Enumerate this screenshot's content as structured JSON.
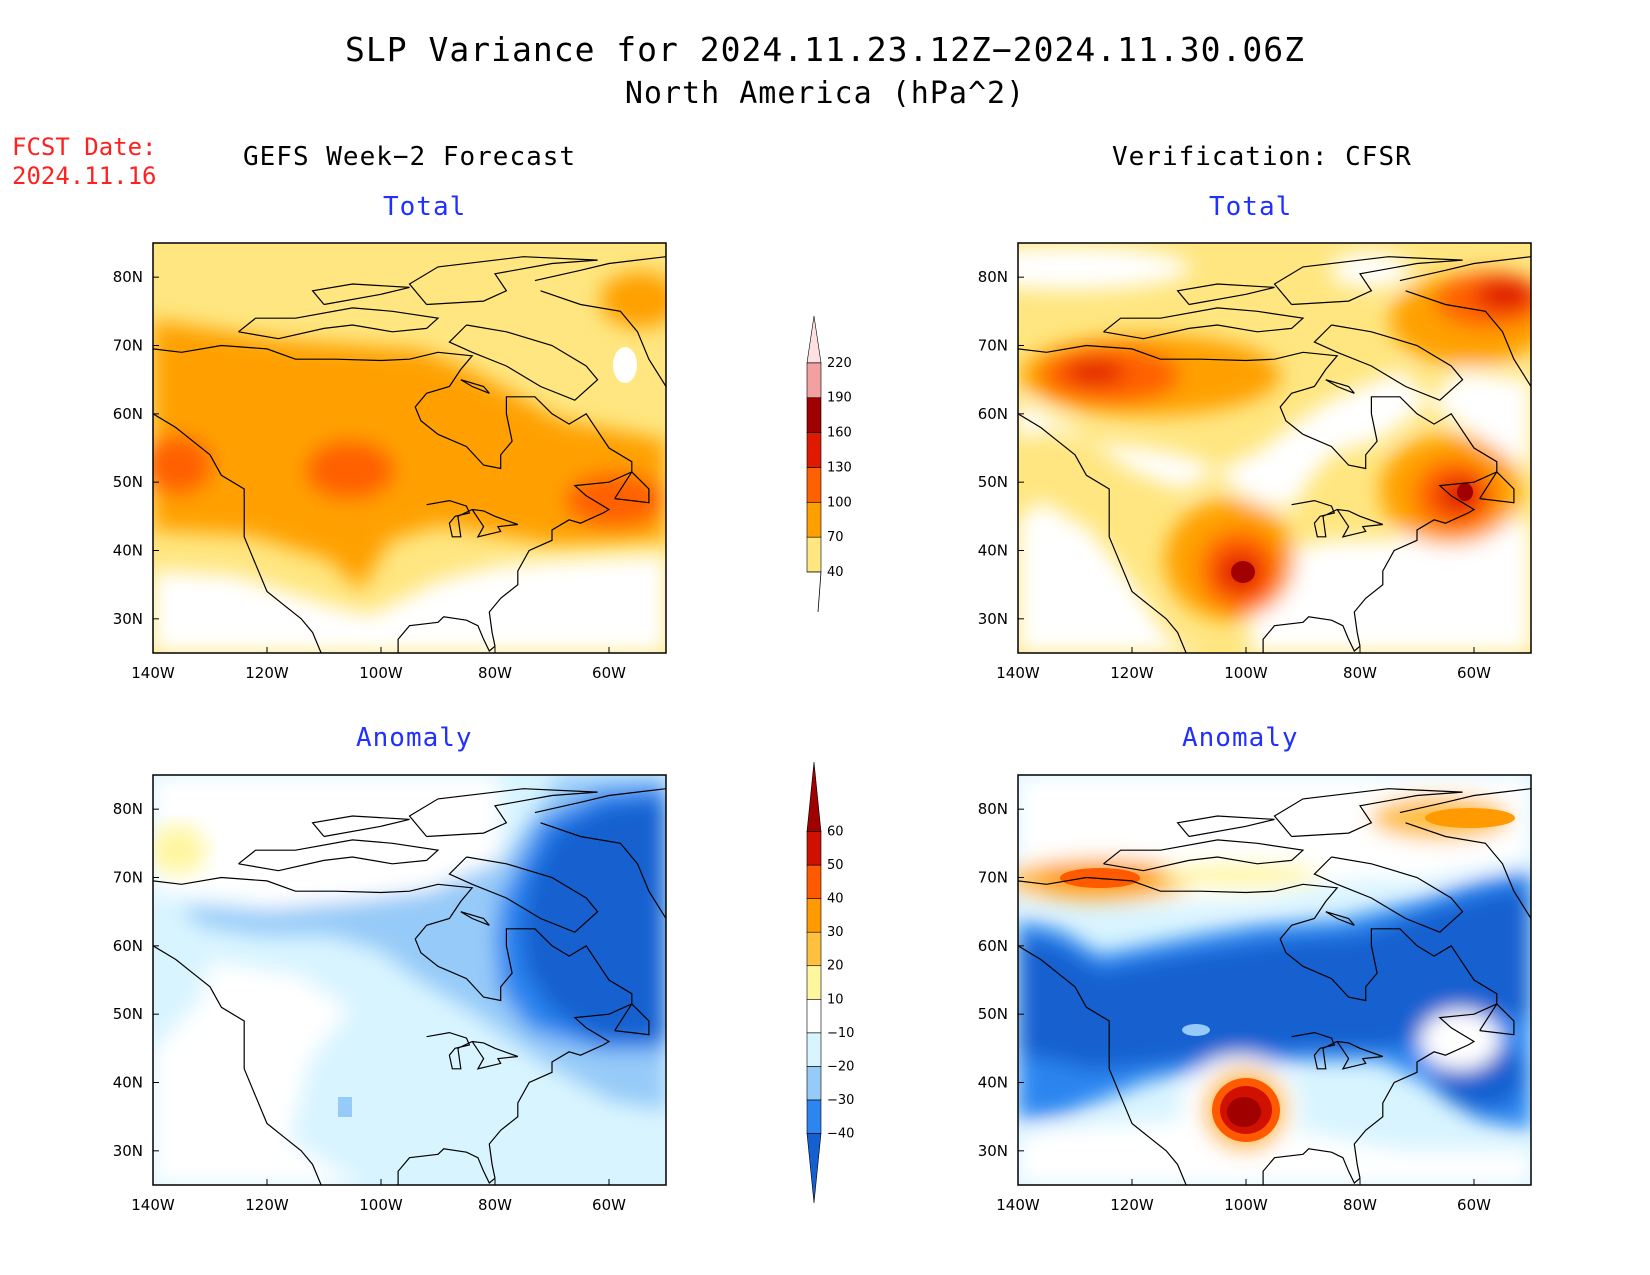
{
  "title_line1": "SLP Variance for 2024.11.23.12Z−2024.11.30.06Z",
  "title_line2": "North America (hPa^2)",
  "fcst_label": "FCST Date:",
  "fcst_date": "2024.11.16",
  "left_column_title": "GEFS Week−2 Forecast",
  "right_column_title": "Verification: CFSR",
  "panels": [
    {
      "id": "gefs-total",
      "subtitle": "Total"
    },
    {
      "id": "cfsr-total",
      "subtitle": "Total"
    },
    {
      "id": "gefs-anomaly",
      "subtitle": "Anomaly"
    },
    {
      "id": "cfsr-anomaly",
      "subtitle": "Anomaly"
    }
  ],
  "axes": {
    "lon_ticks": [
      -140,
      -120,
      -100,
      -80,
      -60
    ],
    "lon_labels": [
      "140W",
      "120W",
      "100W",
      "80W",
      "60W"
    ],
    "lat_ticks": [
      30,
      40,
      50,
      60,
      70,
      80
    ],
    "lat_labels": [
      "30N",
      "40N",
      "50N",
      "60N",
      "70N",
      "80N"
    ],
    "lon_range": [
      -140,
      -50
    ],
    "lat_range": [
      25,
      85
    ]
  },
  "total_colorbar": {
    "levels": [
      "40",
      "70",
      "100",
      "130",
      "160",
      "190",
      "220"
    ],
    "colors": [
      "#ffe680",
      "#ffa000",
      "#ff6000",
      "#e01a00",
      "#a00000",
      "#f2a0a0",
      "#fde0e0"
    ]
  },
  "anomaly_colorbar": {
    "levels": [
      "−40",
      "−30",
      "−20",
      "−10",
      "10",
      "20",
      "30",
      "40",
      "50",
      "60"
    ],
    "colors": [
      "#1560d0",
      "#2c85f0",
      "#96caf8",
      "#d8f4ff",
      "#ffffff",
      "#fff6a0",
      "#ffc040",
      "#ff9a00",
      "#ff5a00",
      "#d01000",
      "#a00000"
    ]
  },
  "colors": {
    "subtitle": "#2030ff",
    "fcst": "#ff2020"
  }
}
